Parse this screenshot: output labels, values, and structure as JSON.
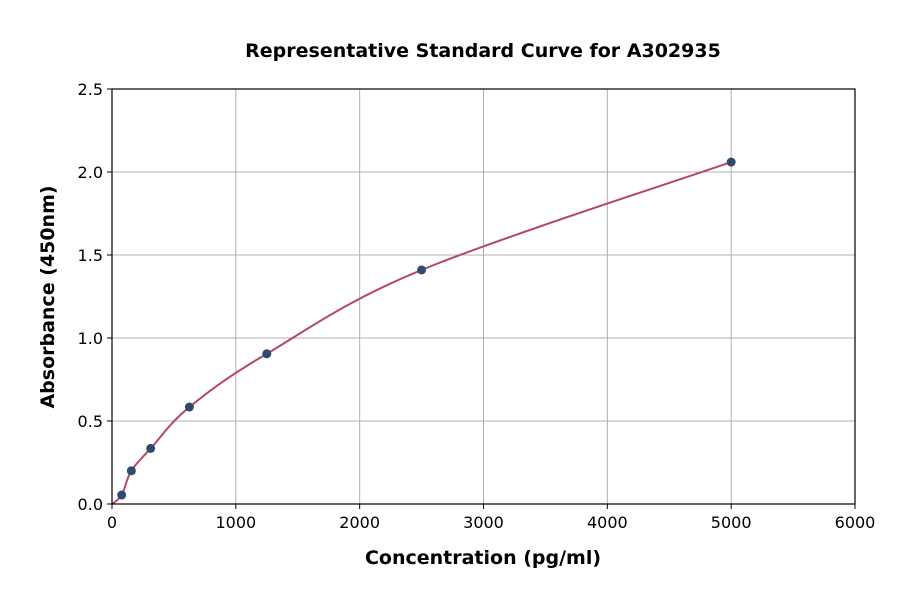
{
  "chart_data": {
    "type": "scatter",
    "title": "Representative Standard Curve for A302935",
    "xlabel": "Concentration (pg/ml)",
    "ylabel": "Absorbance (450nm)",
    "xlim": [
      0,
      6000
    ],
    "ylim": [
      0,
      2.5
    ],
    "xticks": [
      0,
      1000,
      2000,
      3000,
      4000,
      5000,
      6000
    ],
    "yticks": [
      0.0,
      0.5,
      1.0,
      1.5,
      2.0,
      2.5
    ],
    "xtick_labels": [
      "0",
      "1000",
      "2000",
      "3000",
      "4000",
      "5000",
      "6000"
    ],
    "ytick_labels": [
      "0.0",
      "0.5",
      "1.0",
      "1.5",
      "2.0",
      "2.5"
    ],
    "grid": true,
    "points": [
      {
        "x": 78.125,
        "y": 0.054
      },
      {
        "x": 156.25,
        "y": 0.2
      },
      {
        "x": 312.5,
        "y": 0.335
      },
      {
        "x": 625,
        "y": 0.584
      },
      {
        "x": 1250,
        "y": 0.905
      },
      {
        "x": 2500,
        "y": 1.41
      },
      {
        "x": 5000,
        "y": 2.06
      }
    ],
    "point_color": "#2e4a6e",
    "curve_color": "#b5476b"
  }
}
